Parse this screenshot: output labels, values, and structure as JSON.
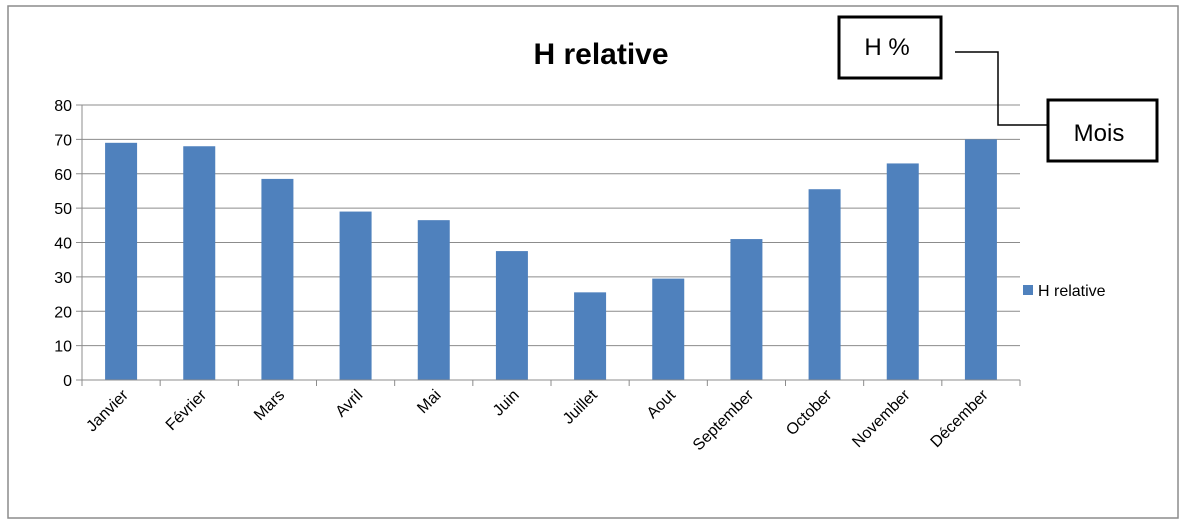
{
  "chart_data": {
    "type": "bar",
    "title": "H relative",
    "categories": [
      "Janvier",
      "Février",
      "Mars",
      "Avril",
      "Mai",
      "Juin",
      "Juillet",
      "Aout",
      "September",
      "October",
      "November",
      "Décember"
    ],
    "series": [
      {
        "name": "H relative",
        "color": "#4F81BD",
        "values": [
          69,
          68,
          58.5,
          49,
          46.5,
          37.5,
          25.5,
          29.5,
          41,
          55.5,
          63,
          70
        ]
      }
    ],
    "ylim": [
      0,
      80
    ],
    "yticks": [
      0,
      10,
      20,
      30,
      40,
      50,
      60,
      70,
      80
    ],
    "grid": true,
    "legend_position": "right"
  },
  "annotations": {
    "y_callout": "H %",
    "x_callout": "Mois"
  }
}
